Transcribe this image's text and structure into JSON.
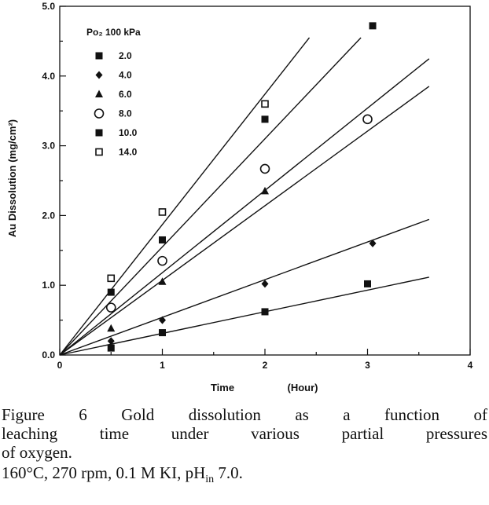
{
  "chart_data": {
    "type": "scatter",
    "xlabel": "Time",
    "xlabel_unit": "(Hour)",
    "ylabel": "Au Dissolution (mg/cm²)",
    "xlim": [
      0,
      4
    ],
    "ylim": [
      0,
      5
    ],
    "x_ticks": [
      "0",
      "1",
      "2",
      "3",
      "4"
    ],
    "y_ticks": [
      "0.0",
      "1.0",
      "2.0",
      "3.0",
      "4.0",
      "5.0"
    ],
    "legend_title": "Po₂ 100 kPa",
    "legend_position": "top-left",
    "grid": false,
    "series": [
      {
        "name": "2.0",
        "marker": "filled-square",
        "x": [
          0.5,
          1.0,
          2.0,
          3.0
        ],
        "y": [
          0.1,
          0.32,
          0.62,
          1.02
        ],
        "fit_slope": 0.31
      },
      {
        "name": "4.0",
        "marker": "filled-diamond",
        "x": [
          0.5,
          1.0,
          2.0,
          3.05
        ],
        "y": [
          0.2,
          0.5,
          1.02,
          1.6
        ],
        "fit_slope": 0.54
      },
      {
        "name": "6.0",
        "marker": "filled-triangle",
        "x": [
          0.5,
          1.0,
          2.0
        ],
        "y": [
          0.38,
          1.05,
          2.35
        ],
        "fit_slope": 1.07
      },
      {
        "name": "8.0",
        "marker": "open-circle",
        "x": [
          0.5,
          1.0,
          2.0,
          3.0
        ],
        "y": [
          0.68,
          1.35,
          2.67,
          3.38
        ],
        "fit_slope": 1.18
      },
      {
        "name": "10.0",
        "marker": "filled-square",
        "x": [
          0.5,
          1.0,
          2.0,
          3.05
        ],
        "y": [
          0.9,
          1.65,
          3.38,
          4.72
        ],
        "fit_slope": 1.55
      },
      {
        "name": "14.0",
        "marker": "open-square",
        "x": [
          0.5,
          1.0,
          2.0
        ],
        "y": [
          1.1,
          2.05,
          3.6
        ],
        "fit_slope": 1.87
      }
    ]
  },
  "caption": {
    "line1": "Figure 6 Gold dissolution as a function of",
    "line2": "leaching time under various partial pressures",
    "line3": "of oxygen.",
    "line4_prefix": "160°C, 270 rpm, 0.1 M KI, pH",
    "line4_sub": "in",
    "line4_suffix": " 7.0."
  }
}
